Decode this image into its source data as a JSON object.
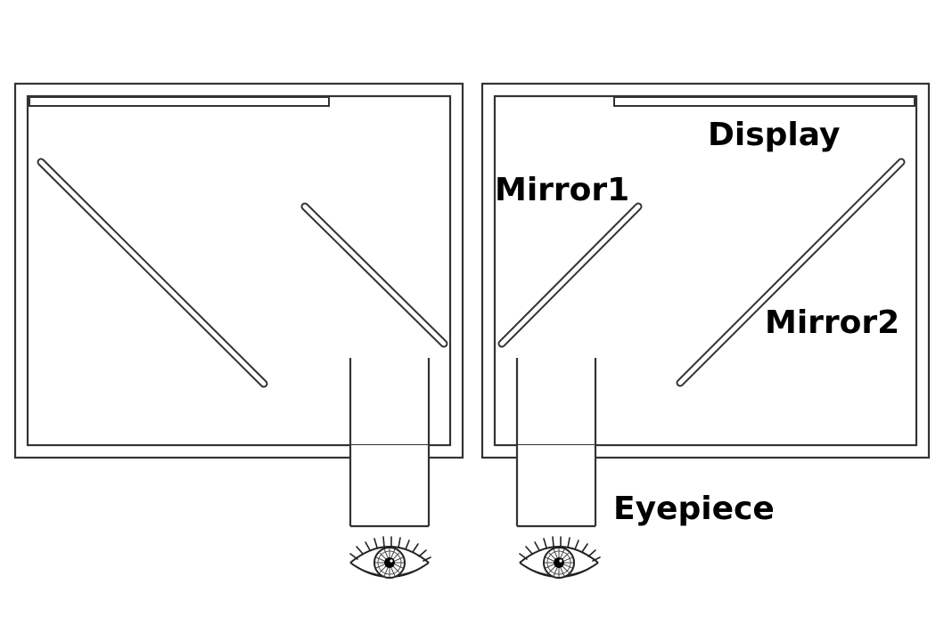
{
  "labels": {
    "display": "Display",
    "mirror1": "Mirror1",
    "mirror2": "Mirror2",
    "eyepiece": "Eyepiece"
  },
  "colors": {
    "stroke": "#333333",
    "text": "#000000",
    "background": "#ffffff"
  },
  "icons": {
    "eye": "eye-icon"
  }
}
